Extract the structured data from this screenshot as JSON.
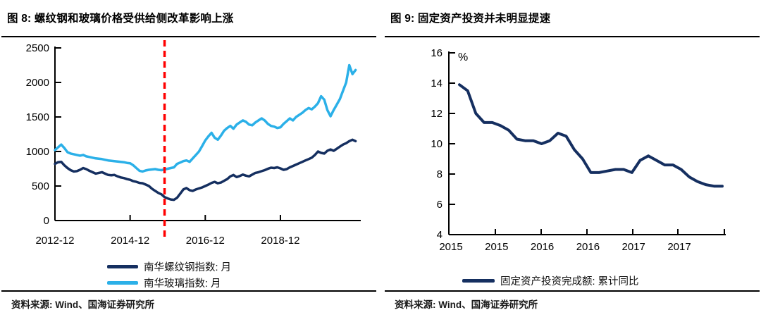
{
  "figure8": {
    "title": "图 8: 螺纹钢和玻璃价格受供给侧改革影响上涨",
    "source": "资料来源: Wind、国海证券研究所"
  },
  "figure9": {
    "title": "图 9: 固定资产投资并未明显提速",
    "source": "资料来源: Wind、国海证券研究所"
  },
  "colors": {
    "rebar_line": "#152f60",
    "glass_line": "#2bb0e8",
    "fai_line": "#152f60",
    "event_vline": "#ff0000",
    "axis": "#000000"
  },
  "chart_data": [
    {
      "type": "line",
      "title": "螺纹钢和玻璃价格受供给侧改革影响上涨",
      "x_start": "2012-12",
      "x_frequency": "monthly",
      "x_tick_labels": [
        "2012-12",
        "2014-12",
        "2016-12",
        "2018-12"
      ],
      "ylim": [
        0,
        2500
      ],
      "y_ticks": [
        0,
        500,
        1000,
        1500,
        2000,
        2500
      ],
      "grid": false,
      "legend_position": "bottom",
      "annotation": {
        "type": "vline",
        "style": "dashed",
        "color": "#ff0000",
        "x_date": "2015-11",
        "x_month_index": 35
      },
      "series": [
        {
          "name": "南华螺纹钢指数: 月",
          "color": "#152f60",
          "values": [
            820,
            845,
            850,
            800,
            760,
            730,
            710,
            715,
            735,
            760,
            745,
            720,
            700,
            680,
            690,
            700,
            680,
            660,
            655,
            660,
            640,
            625,
            615,
            600,
            590,
            570,
            560,
            545,
            540,
            520,
            500,
            460,
            430,
            400,
            380,
            340,
            320,
            305,
            300,
            330,
            390,
            450,
            470,
            440,
            430,
            450,
            465,
            480,
            500,
            520,
            545,
            560,
            540,
            550,
            575,
            600,
            640,
            660,
            630,
            645,
            665,
            650,
            640,
            665,
            690,
            700,
            715,
            730,
            750,
            765,
            760,
            770,
            755,
            735,
            745,
            770,
            790,
            810,
            830,
            850,
            870,
            890,
            910,
            950,
            1000,
            980,
            970,
            1010,
            1030,
            1010,
            1040,
            1070,
            1100,
            1120,
            1150,
            1170,
            1150
          ]
        },
        {
          "name": "南华玻璃指数: 月",
          "color": "#2bb0e8",
          "values": [
            1020,
            1060,
            1100,
            1050,
            990,
            970,
            960,
            950,
            940,
            950,
            930,
            920,
            910,
            900,
            895,
            890,
            880,
            870,
            865,
            860,
            855,
            850,
            845,
            835,
            830,
            800,
            760,
            720,
            710,
            725,
            735,
            740,
            745,
            735,
            730,
            740,
            750,
            760,
            770,
            820,
            840,
            860,
            870,
            850,
            900,
            950,
            1000,
            1080,
            1160,
            1220,
            1270,
            1200,
            1170,
            1230,
            1300,
            1340,
            1370,
            1330,
            1390,
            1420,
            1450,
            1430,
            1390,
            1380,
            1420,
            1450,
            1480,
            1450,
            1400,
            1370,
            1360,
            1340,
            1350,
            1400,
            1440,
            1480,
            1450,
            1500,
            1530,
            1560,
            1600,
            1630,
            1610,
            1650,
            1700,
            1800,
            1750,
            1600,
            1510,
            1600,
            1680,
            1760,
            1880,
            2000,
            2250,
            2120,
            2180
          ]
        }
      ]
    },
    {
      "type": "line",
      "title": "固定资产投资并未明显提速",
      "x_start": "2015-02",
      "x_frequency": "monthly (Jan omitted)",
      "x_tick_labels": [
        "2015",
        "2015",
        "2016",
        "2016",
        "2017",
        "2017"
      ],
      "ylim": [
        4,
        16
      ],
      "y_ticks": [
        4,
        6,
        8,
        10,
        12,
        14,
        16
      ],
      "ylabel": "%",
      "grid": false,
      "legend_position": "bottom",
      "series": [
        {
          "name": "固定资产投资完成额: 累计同比",
          "color": "#152f60",
          "values": [
            13.9,
            13.5,
            12.0,
            11.4,
            11.4,
            11.2,
            10.9,
            10.3,
            10.2,
            10.2,
            10.0,
            10.2,
            10.7,
            10.5,
            9.6,
            9.0,
            8.1,
            8.1,
            8.2,
            8.3,
            8.3,
            8.1,
            8.9,
            9.2,
            8.9,
            8.6,
            8.6,
            8.3,
            7.8,
            7.5,
            7.3,
            7.2,
            7.2
          ]
        }
      ]
    }
  ]
}
